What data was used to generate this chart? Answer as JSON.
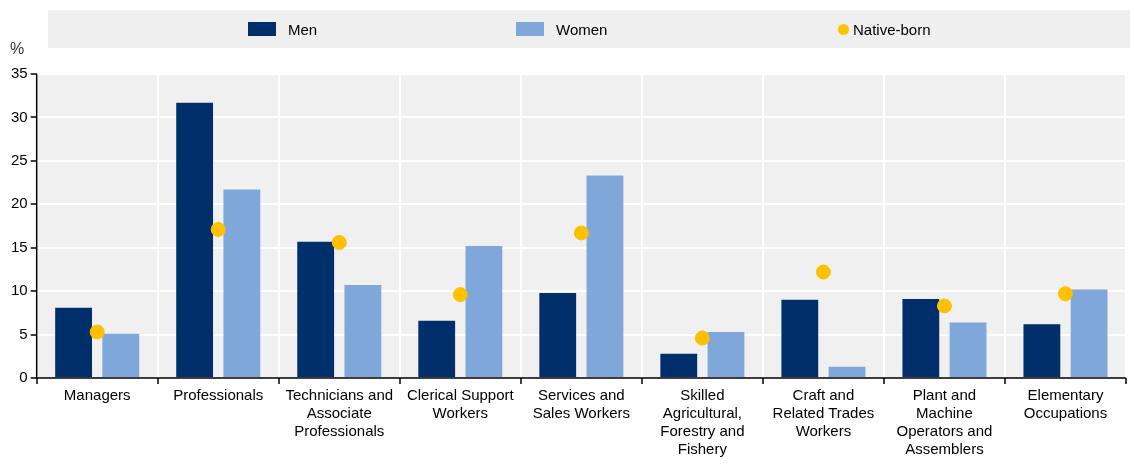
{
  "chart_data": {
    "type": "bar",
    "ylabel": "%",
    "categories": [
      "Managers",
      "Professionals",
      "Technicians and Associate Professionals",
      "Clerical Support Workers",
      "Services and Sales Workers",
      "Skilled Agricultural, Forestry and Fishery",
      "Craft and Related Trades Workers",
      "Plant and Machine Operators and Assemblers",
      "Elementary Occupations"
    ],
    "series": [
      {
        "name": "Men",
        "color": "#002f6c",
        "values": [
          8.1,
          31.7,
          15.7,
          6.6,
          9.8,
          2.8,
          9.0,
          9.1,
          6.2
        ]
      },
      {
        "name": "Women",
        "color": "#7fa7d9",
        "values": [
          5.1,
          21.7,
          10.7,
          15.2,
          23.3,
          5.3,
          1.3,
          6.4,
          10.2
        ]
      },
      {
        "name": "Native-born",
        "type": "scatter",
        "color": "#ffc000",
        "x": [
          "Managers",
          "Professionals",
          "Technicians and Associate Professionals",
          "Clerical Support Workers",
          "Services and Sales Workers",
          "Skilled Agricultural, Forestry and Fishery",
          "Craft and Related Trades Workers",
          "Plant and Machine Operators and Assemblers",
          "Elementary Occupations"
        ],
        "values": [
          5.3,
          17.1,
          15.6,
          9.6,
          16.7,
          4.6,
          12.2,
          8.3,
          9.7
        ]
      }
    ],
    "ylim": [
      0,
      35
    ],
    "yticks": [
      0,
      5,
      10,
      15,
      20,
      25,
      30,
      35
    ],
    "grid": true,
    "legend": "top",
    "marker": "circle"
  }
}
